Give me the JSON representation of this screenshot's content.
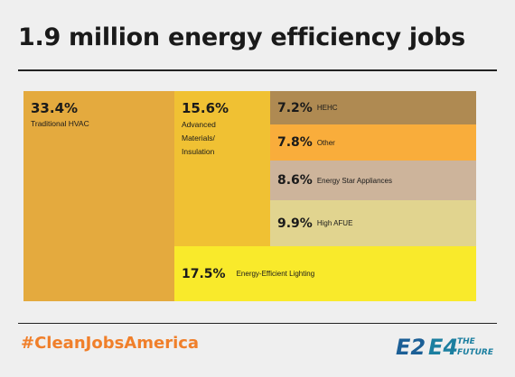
{
  "title": "1.9 million energy efficiency jobs",
  "hashtag": "#CleanJobsAmerica",
  "logos": {
    "e2": "E2",
    "e4_mark": "E4",
    "e4_text_1": "THE",
    "e4_text_2": "FUTURE"
  },
  "colors": {
    "e2_blue": "#1c5f96",
    "e4_teal": "#1c7fa0",
    "hashtag_orange": "#f07f2a"
  },
  "chart_data": {
    "type": "treemap",
    "title": "1.9 million energy efficiency jobs",
    "total": "1.9 million",
    "segments": [
      {
        "label": "Traditional HVAC",
        "value": 33.4,
        "display": "33.4%",
        "color": "#e4aa3e"
      },
      {
        "label": "Advanced Materials/ Insulation",
        "label_lines": [
          "Advanced",
          "Materials/",
          "Insulation"
        ],
        "value": 15.6,
        "display": "15.6%",
        "color": "#f0c133"
      },
      {
        "label": "HEHC",
        "value": 7.2,
        "display": "7.2%",
        "color": "#af8a52"
      },
      {
        "label": "Other",
        "value": 7.8,
        "display": "7.8%",
        "color": "#f9ad3b"
      },
      {
        "label": "Energy Star Appliances",
        "value": 8.6,
        "display": "8.6%",
        "color": "#cdb49b"
      },
      {
        "label": "High AFUE",
        "value": 9.9,
        "display": "9.9%",
        "color": "#e1d48f"
      },
      {
        "label": "Energy-Efficient Lighting",
        "value": 17.5,
        "display": "17.5%",
        "color": "#f9ea2b"
      }
    ]
  }
}
